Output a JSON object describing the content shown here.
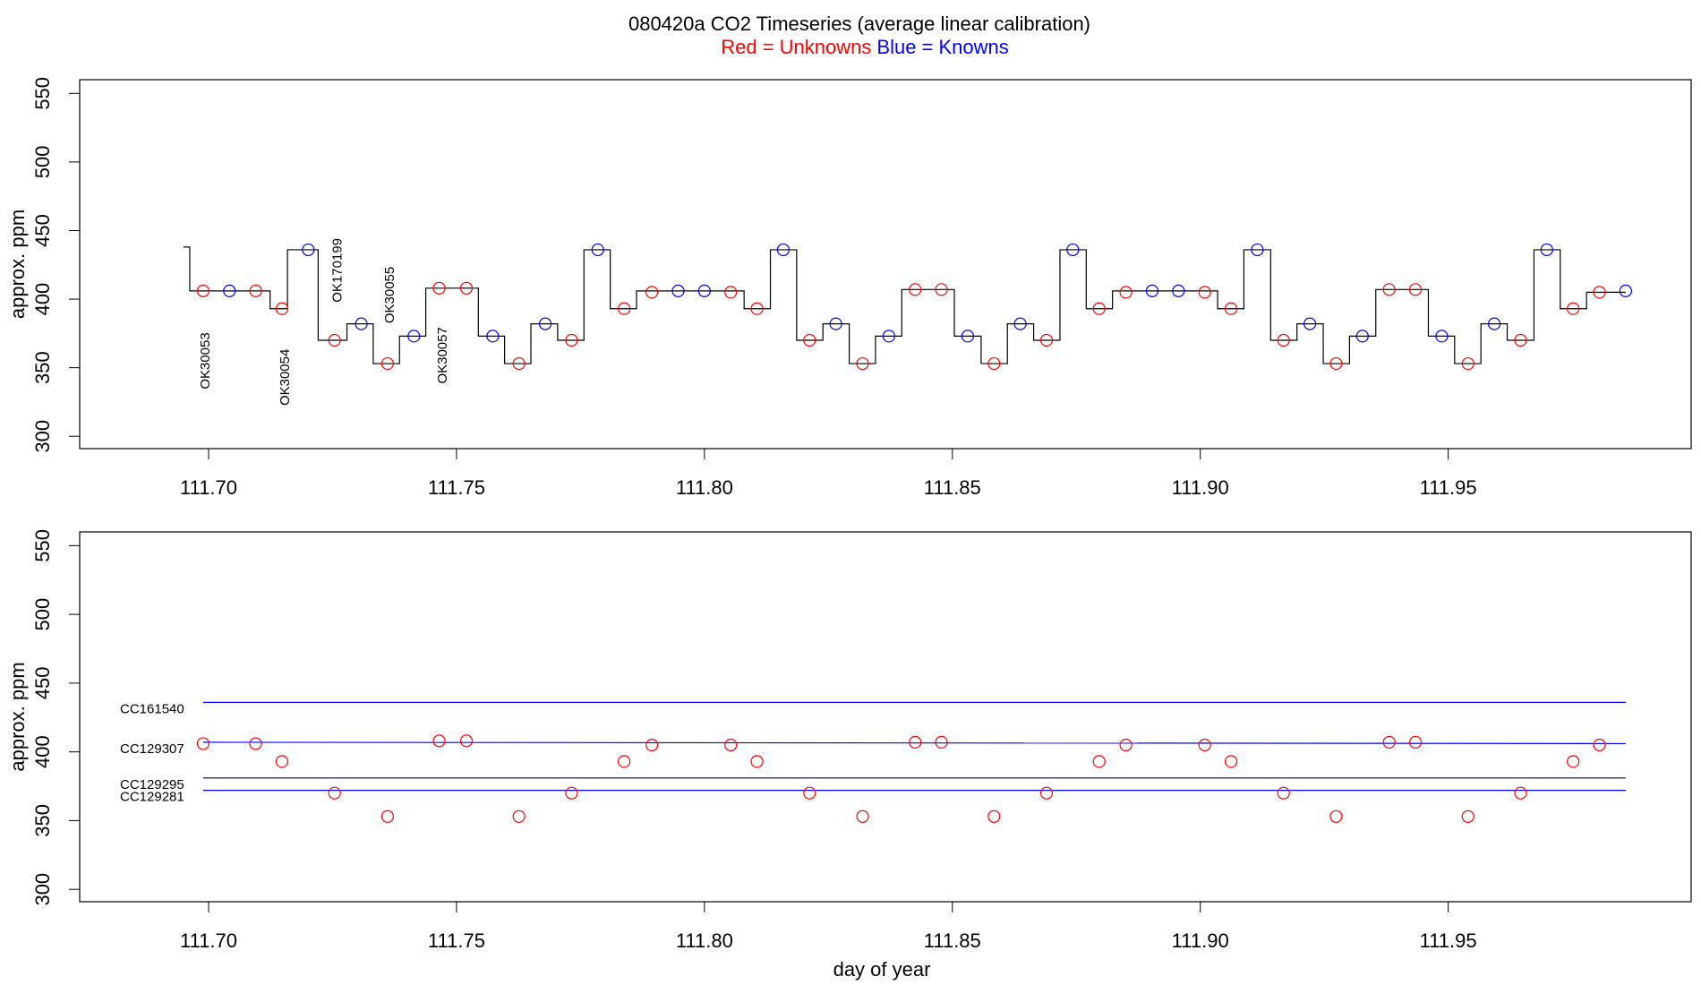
{
  "chart_data": [
    {
      "type": "line",
      "title": "080420a   CO2 Timeseries (average linear calibration)",
      "subtitle": [
        {
          "text": "Red = Unknowns",
          "color": "#ff0000"
        },
        {
          "text": "Blue = Knowns",
          "color": "#0000ff"
        }
      ],
      "ylabel": "approx. ppm",
      "xlim": [
        111.674,
        111.999
      ],
      "ylim": [
        291,
        560
      ],
      "xticks": [
        {
          "value": 111.7,
          "label": "111.70"
        },
        {
          "value": 111.75,
          "label": "111.75"
        },
        {
          "value": 111.8,
          "label": "111.80"
        },
        {
          "value": 111.85,
          "label": "111.85"
        },
        {
          "value": 111.9,
          "label": "111.90"
        },
        {
          "value": 111.95,
          "label": "111.95"
        }
      ],
      "yticks": [
        300,
        350,
        400,
        450,
        500,
        550
      ],
      "series": [
        {
          "type": "line",
          "drawstyle": "steps-post",
          "color": "#000000",
          "x": [
            111.6949,
            111.6962,
            111.7124,
            111.7159,
            111.7221,
            111.7279,
            111.7332,
            111.7385,
            111.7438,
            111.7544,
            111.7597,
            111.765,
            111.7704,
            111.7757,
            111.781,
            111.7863,
            111.808,
            111.8133,
            111.8186,
            111.8239,
            111.8292,
            111.8345,
            111.8398,
            111.8504,
            111.8558,
            111.8611,
            111.8664,
            111.8717,
            111.877,
            111.8823,
            111.9035,
            111.9088,
            111.9142,
            111.9195,
            111.9248,
            111.9301,
            111.9354,
            111.946,
            111.9513,
            111.9566,
            111.9619,
            111.9673,
            111.9726,
            111.9779,
            111.9858
          ],
          "values": [
            438,
            406,
            393,
            436,
            370,
            382,
            353,
            373,
            408,
            373,
            353,
            382,
            370,
            436,
            393,
            406,
            393,
            436,
            370,
            382,
            353,
            373,
            407,
            373,
            353,
            382,
            370,
            436,
            393,
            406,
            393,
            436,
            370,
            382,
            353,
            373,
            407,
            373,
            353,
            382,
            370,
            436,
            393,
            405,
            405
          ]
        },
        {
          "type": "scatter",
          "color": "#ff0000",
          "x": [
            111.6989,
            111.7095,
            111.7148,
            111.7254,
            111.7361,
            111.7465,
            111.752,
            111.7626,
            111.7732,
            111.7838,
            111.7894,
            111.8053,
            111.8106,
            111.8212,
            111.8319,
            111.8425,
            111.8478,
            111.8584,
            111.869,
            111.8796,
            111.885,
            111.9009,
            111.9062,
            111.9168,
            111.9274,
            111.9381,
            111.9434,
            111.954,
            111.9646,
            111.9752,
            111.9805
          ],
          "values": [
            406,
            406,
            393,
            370,
            353,
            408,
            408,
            353,
            370,
            393,
            405,
            405,
            393,
            370,
            353,
            407,
            407,
            353,
            370,
            393,
            405,
            405,
            393,
            370,
            353,
            407,
            407,
            353,
            370,
            393,
            405
          ]
        },
        {
          "type": "scatter",
          "color": "#0000ff",
          "x": [
            111.7042,
            111.7201,
            111.7308,
            111.7414,
            111.7573,
            111.7679,
            111.7785,
            111.7947,
            111.8,
            111.8159,
            111.8265,
            111.8372,
            111.8531,
            111.8637,
            111.8743,
            111.8903,
            111.8956,
            111.9115,
            111.9221,
            111.9327,
            111.9487,
            111.9593,
            111.9699,
            111.9858
          ],
          "values": [
            406,
            436,
            382,
            373,
            373,
            382,
            436,
            406,
            406,
            436,
            382,
            373,
            373,
            382,
            436,
            406,
            406,
            436,
            382,
            373,
            373,
            382,
            436,
            406
          ]
        }
      ],
      "annotations": [
        {
          "text": "OK30053",
          "x": 111.6995,
          "y": 355,
          "color": "#ff0000"
        },
        {
          "text": "OK30054",
          "x": 111.7155,
          "y": 343,
          "color": "#ff0000"
        },
        {
          "text": "OK170199",
          "x": 111.7261,
          "y": 421,
          "color": "#ff0000"
        },
        {
          "text": "OK30055",
          "x": 111.7367,
          "y": 403,
          "color": "#ff0000"
        },
        {
          "text": "OK30057",
          "x": 111.7473,
          "y": 359,
          "color": "#ff0000"
        }
      ]
    },
    {
      "type": "scatter",
      "ylabel": "approx. ppm",
      "xlabel": "day of year",
      "xlim": [
        111.674,
        111.999
      ],
      "ylim": [
        291,
        560
      ],
      "xticks": [
        {
          "value": 111.7,
          "label": "111.70"
        },
        {
          "value": 111.75,
          "label": "111.75"
        },
        {
          "value": 111.8,
          "label": "111.80"
        },
        {
          "value": 111.85,
          "label": "111.85"
        },
        {
          "value": 111.9,
          "label": "111.90"
        },
        {
          "value": 111.95,
          "label": "111.95"
        }
      ],
      "yticks": [
        300,
        350,
        400,
        450,
        500,
        550
      ],
      "label_color": "#0000ff",
      "series": [
        {
          "type": "line",
          "name": "CC161540",
          "color": "#0000ff",
          "x": [
            111.6989,
            111.9858
          ],
          "values": [
            436,
            436
          ]
        },
        {
          "type": "line",
          "name": "CC129307",
          "color": "#0000ff",
          "x": [
            111.6989,
            111.9858
          ],
          "values": [
            407,
            406
          ]
        },
        {
          "type": "line",
          "name": "CC129295",
          "color": "#000033",
          "x": [
            111.6989,
            111.9858
          ],
          "values": [
            381,
            381
          ]
        },
        {
          "type": "line",
          "name": "CC129281",
          "color": "#0000ff",
          "x": [
            111.6989,
            111.9858
          ],
          "values": [
            372,
            372
          ]
        },
        {
          "type": "scatter",
          "color": "#ff0000",
          "x": [
            111.6989,
            111.7095,
            111.7148,
            111.7254,
            111.7361,
            111.7465,
            111.752,
            111.7626,
            111.7732,
            111.7838,
            111.7894,
            111.8053,
            111.8106,
            111.8212,
            111.8319,
            111.8425,
            111.8478,
            111.8584,
            111.869,
            111.8796,
            111.885,
            111.9009,
            111.9062,
            111.9168,
            111.9274,
            111.9381,
            111.9434,
            111.954,
            111.9646,
            111.9752,
            111.9805
          ],
          "values": [
            406,
            406,
            393,
            370,
            353,
            408,
            408,
            353,
            370,
            393,
            405,
            405,
            393,
            370,
            353,
            407,
            407,
            353,
            370,
            393,
            405,
            405,
            393,
            370,
            353,
            407,
            407,
            353,
            370,
            393,
            405
          ]
        }
      ]
    }
  ]
}
